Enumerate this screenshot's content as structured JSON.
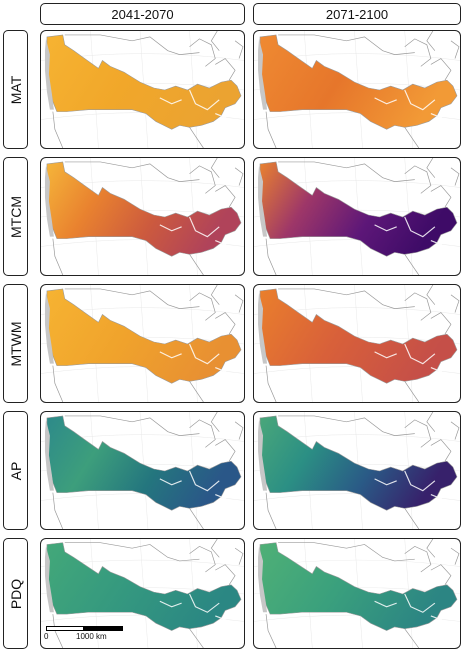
{
  "columns": [
    "2041-2070",
    "2071-2100"
  ],
  "rows": [
    "MAT",
    "MTCM",
    "MTWM",
    "AP",
    "PDQ"
  ],
  "scale_bar": {
    "start_label": "0",
    "end_label": "1000 km"
  },
  "palettes": {
    "MAT": {
      "left": [
        "#f6b332",
        "#f1a72a",
        "#eba331"
      ],
      "right": [
        "#ef8a32",
        "#e6762b",
        "#f29a36"
      ]
    },
    "MTCM": {
      "left": [
        "#f5b53a",
        "#e9822f",
        "#cc5a3e",
        "#b0435a"
      ],
      "right": [
        "#e9822f",
        "#9e3768",
        "#5d1778",
        "#3e0b67"
      ]
    },
    "MTWM": {
      "left": [
        "#f6b332",
        "#f0a32c",
        "#e89032"
      ],
      "right": [
        "#ea7f2c",
        "#d8603a",
        "#c54f48"
      ]
    },
    "AP": {
      "left": [
        "#2d8a8a",
        "#3d9e7c",
        "#24767e",
        "#2a5788"
      ],
      "right": [
        "#4aa77a",
        "#2b8f84",
        "#2a5a86",
        "#37216b"
      ]
    },
    "PDQ": {
      "left": [
        "#43a879",
        "#35997f",
        "#2b8783"
      ],
      "right": [
        "#4fb076",
        "#3aa07d",
        "#2c8583"
      ]
    }
  },
  "land_color": "#ffffff",
  "border_color": "#9a9a9a",
  "west_coast_color": "#c7c7c7"
}
